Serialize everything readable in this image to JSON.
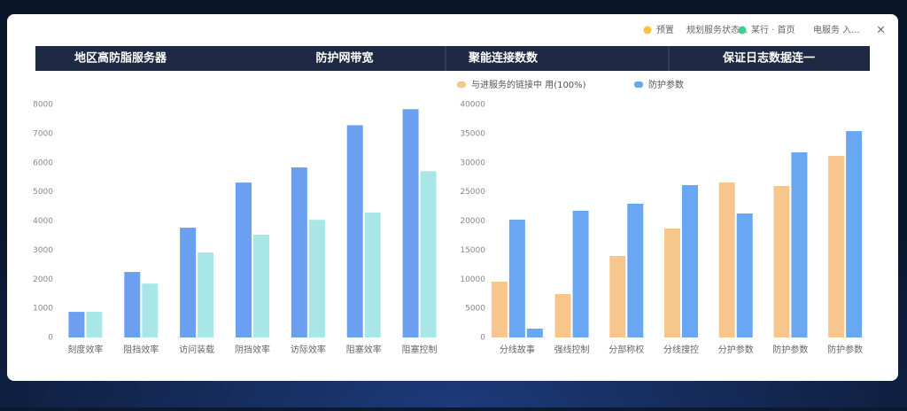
{
  "toolbar": {
    "items": [
      {
        "label": "预置",
        "color": "#f5c242"
      },
      {
        "label": "规划服务状态..."
      },
      {
        "label": "某行 · 首页",
        "color": "#3ecf8e"
      },
      {
        "label": "电服务 入..."
      }
    ],
    "close": "×"
  },
  "header": {
    "columns": [
      "地区高防脂服务器",
      "防护网带宽",
      "聚能连接数数",
      "保证日志数据连一"
    ]
  },
  "chart_data": [
    {
      "type": "bar",
      "categories": [
        "刻度效率",
        "阻挡效率",
        "访问装载",
        "阴挡效率",
        "访际效率",
        "阻塞效率",
        "阻塞控制"
      ],
      "series": [
        {
          "color": "#6b9ff0",
          "values": [
            880,
            2250,
            3770,
            5320,
            5840,
            7290,
            7840
          ]
        },
        {
          "color": "#a8e6e8",
          "values": [
            880,
            1850,
            2920,
            3530,
            4040,
            4290,
            5710
          ]
        }
      ],
      "ylim": [
        0,
        8000
      ],
      "yticks": [
        0,
        1000,
        2000,
        3000,
        4000,
        5000,
        6000,
        7000,
        8000
      ],
      "grid": false
    },
    {
      "type": "bar",
      "categories": [
        "分线故事",
        "强线控制",
        "分部称权",
        "分线搜控",
        "分护参数",
        "防护参数",
        "防护参数"
      ],
      "series": [
        {
          "name": "与进服务的链接中 用(100%)",
          "color": "#f7c68c",
          "values": [
            9580,
            7450,
            13990,
            18710,
            26620,
            26010,
            31180
          ]
        },
        {
          "color": "#6aa7f2",
          "values": [
            1520,
            null,
            null,
            null,
            null,
            null,
            null
          ]
        },
        {
          "name": "防护参数",
          "color": "#6aa7f2",
          "values": [
            20230,
            21750,
            22970,
            26160,
            21290,
            31790,
            35440
          ]
        }
      ],
      "ylim": [
        0,
        40000
      ],
      "yticks": [
        0,
        5000,
        10000,
        15000,
        20000,
        25000,
        30000,
        35000,
        40000
      ],
      "grid": false
    }
  ]
}
